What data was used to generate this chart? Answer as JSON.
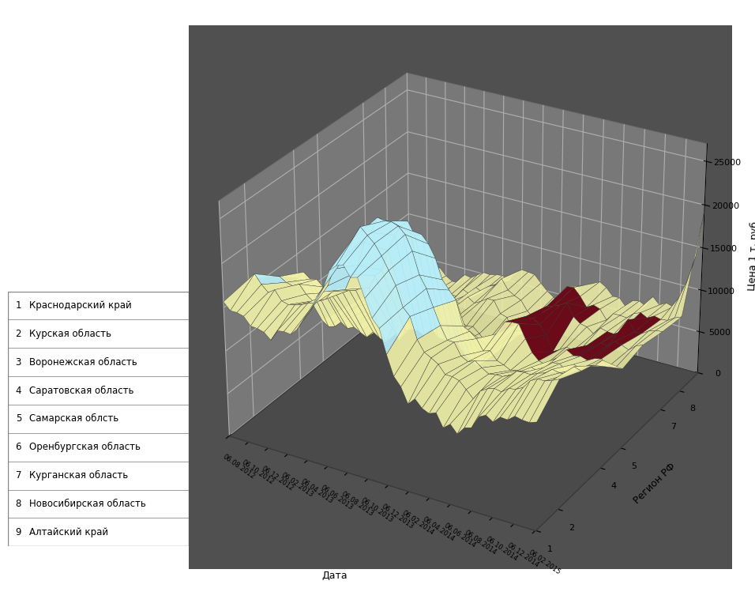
{
  "ylabel": "Цена 1 т, руб.",
  "xlabel": "Дата",
  "region_axis_label": "Регион РФ",
  "region_labels": [
    [
      "1",
      "Краснодарский край"
    ],
    [
      "2",
      "Курская область"
    ],
    [
      "3",
      "Воронежская область"
    ],
    [
      "4",
      "Саратовская область"
    ],
    [
      "5",
      "Самарская облсть"
    ],
    [
      "6",
      "Оренбургская область"
    ],
    [
      "7",
      "Курганская область"
    ],
    [
      "8",
      "Новосибирская область"
    ],
    [
      "9",
      "Алтайский край"
    ]
  ],
  "date_ticks": [
    "06.08.2012",
    "06.10.2012",
    "06.12.2012",
    "06.02.2013",
    "06.04.2013",
    "06.06.2013",
    "06.08.2013",
    "06.10.2013",
    "06.12.2013",
    "06.02.2014",
    "06.04.2014",
    "06.06.2014",
    "06.08.2014",
    "06.10.2014",
    "06.12.2014",
    "06.02.2015"
  ],
  "yticks": [
    0,
    5000,
    10000,
    15000,
    20000,
    25000
  ],
  "color_cyan": "#B8EEF8",
  "color_yellow": "#F0F0A8",
  "color_darkred": "#6B0A18",
  "color_darkpurple": "#1A0A22",
  "pane_color_wall": "#A0A0A0",
  "pane_color_floor": "#505050",
  "region_profiles": [
    [
      15000,
      14500,
      13500,
      14000,
      16000,
      21000,
      23500,
      20500,
      15000,
      11000,
      10000,
      9000,
      10000,
      11000,
      12000,
      13000
    ],
    [
      16000,
      15500,
      14500,
      15500,
      18000,
      23000,
      25000,
      22000,
      16500,
      12500,
      11500,
      10500,
      11500,
      12500,
      13500,
      14500
    ],
    [
      14500,
      14000,
      13000,
      14500,
      17000,
      22500,
      24500,
      21500,
      16000,
      12000,
      11000,
      10000,
      11000,
      12000,
      13000,
      14000
    ],
    [
      13000,
      12500,
      12000,
      13000,
      15000,
      20000,
      21500,
      18500,
      14000,
      10500,
      9500,
      8500,
      9500,
      10500,
      11000,
      12000
    ],
    [
      5000,
      5200,
      4800,
      5200,
      6000,
      7000,
      7500,
      6500,
      5000,
      9500,
      11000,
      7500,
      8500,
      9500,
      9500,
      9000
    ],
    [
      4500,
      4600,
      4200,
      4600,
      5500,
      6500,
      7000,
      6000,
      4500,
      9000,
      8500,
      6500,
      7500,
      8500,
      9000,
      9500
    ],
    [
      4200,
      4300,
      3800,
      4200,
      5200,
      6200,
      7200,
      6200,
      4200,
      7200,
      9200,
      8200,
      7200,
      8200,
      8700,
      9200
    ],
    [
      4000,
      4100,
      3700,
      4000,
      5000,
      6000,
      7000,
      6000,
      4000,
      7000,
      8200,
      7200,
      7200,
      7700,
      8200,
      8700
    ],
    [
      3800,
      3900,
      3500,
      3800,
      4800,
      5800,
      6800,
      5800,
      3800,
      6200,
      7200,
      6200,
      6700,
      7200,
      8200,
      20000
    ]
  ]
}
